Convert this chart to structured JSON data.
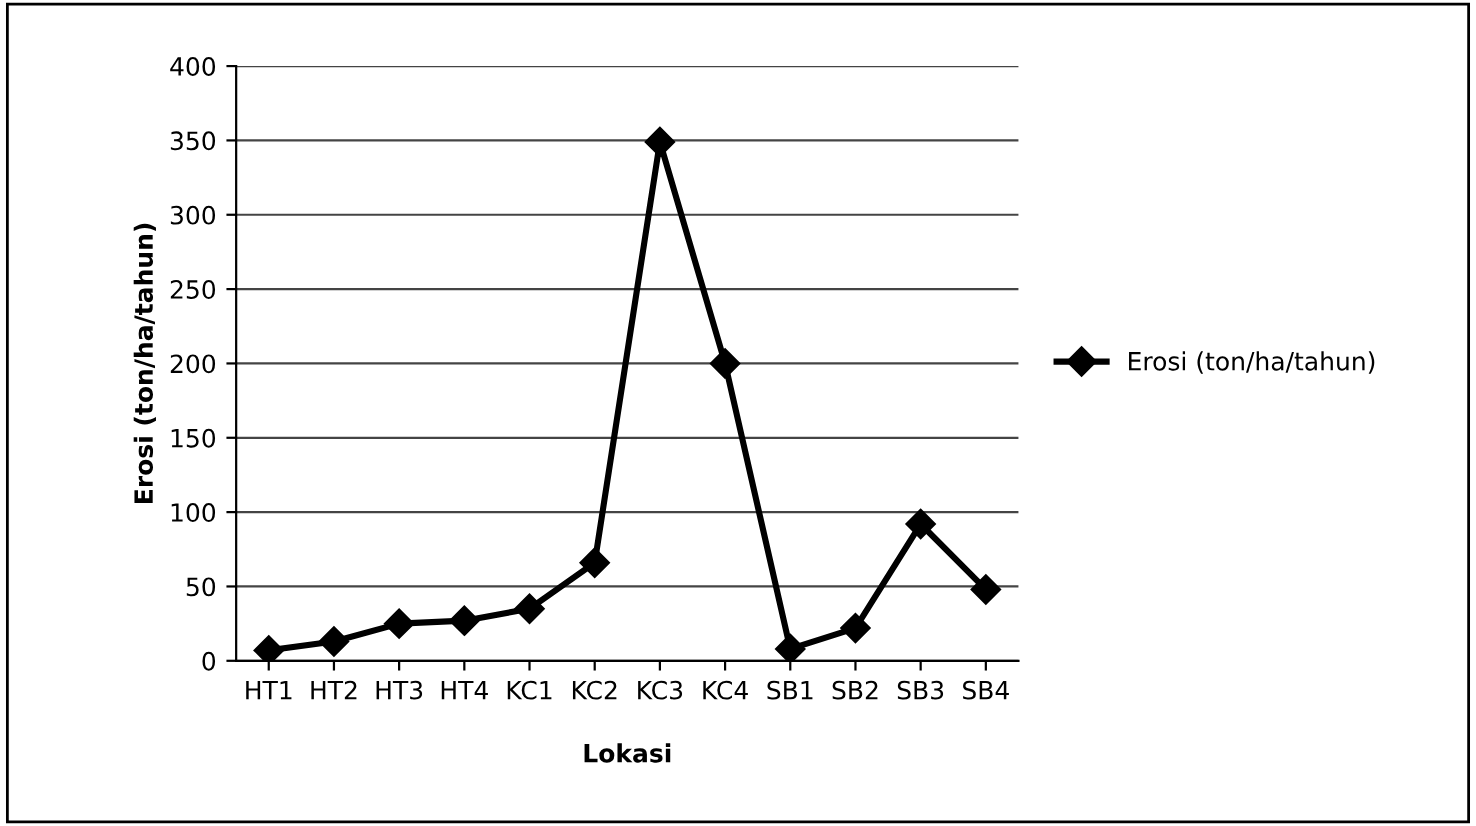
{
  "chart_data": {
    "type": "line",
    "xlabel": "Lokasi",
    "ylabel": "Erosi (ton/ha/tahun)",
    "categories": [
      "HT1",
      "HT2",
      "HT3",
      "HT4",
      "KC1",
      "KC2",
      "KC3",
      "KC4",
      "SB1",
      "SB2",
      "SB3",
      "SB4"
    ],
    "series": [
      {
        "name": "Erosi (ton/ha/tahun)",
        "color": "#000000",
        "values": [
          7,
          13,
          25,
          27,
          35,
          66,
          349,
          200,
          8,
          22,
          92,
          48
        ]
      }
    ],
    "ylim": [
      0,
      400
    ],
    "yticks": [
      0,
      50,
      100,
      150,
      200,
      250,
      300,
      350,
      400
    ],
    "grid": "y",
    "legend": "right",
    "marker": "diamond",
    "line_style": "solid"
  }
}
